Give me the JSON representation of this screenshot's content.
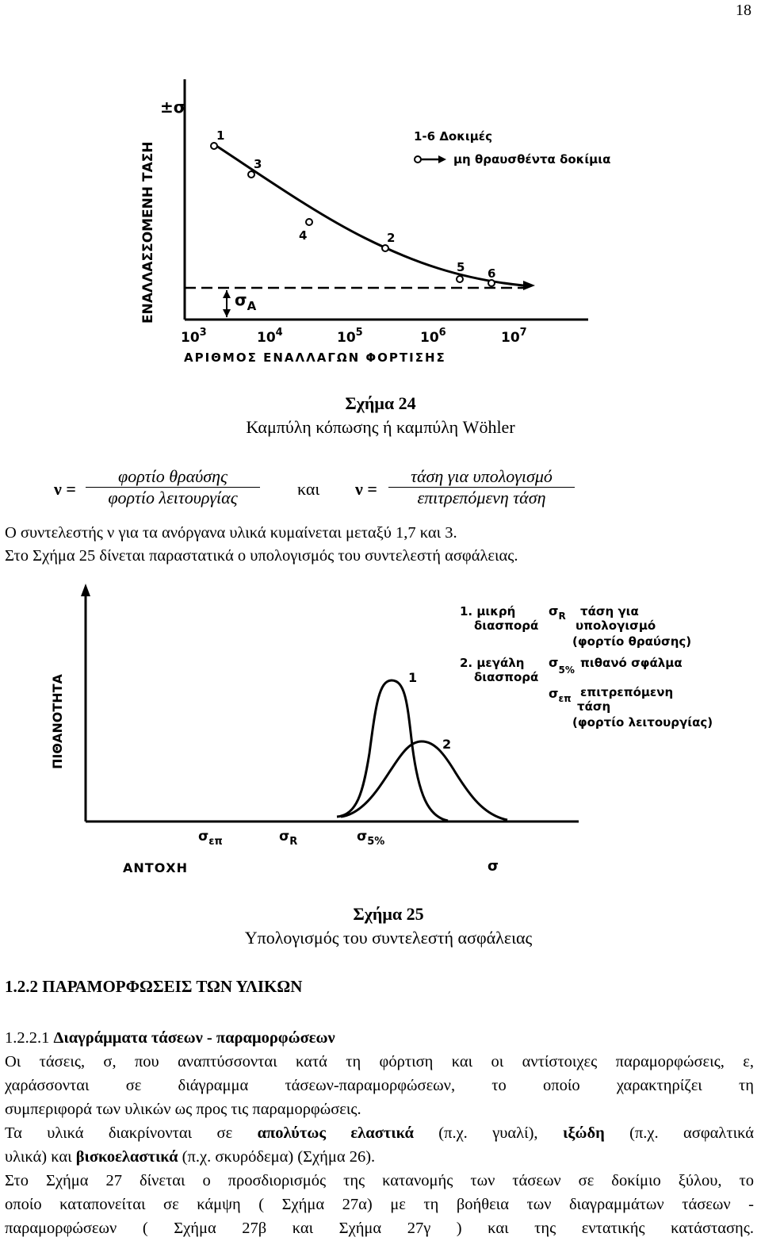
{
  "page_number": "18",
  "fig24": {
    "y_axis_label": "ΕΝΑΛΛΑΣΣΟΜΕΝΗ ΤΑΣΗ",
    "y_symbol": "±σ",
    "x_axis_label": "ΑΡΙΘΜΟΣ ΕΝΑΛΛΑΓΩΝ ΦΟΡΤΙΣΗΣ",
    "x_ticks": [
      "10",
      "10",
      "10",
      "10",
      "10"
    ],
    "x_tick_exponents": [
      "3",
      "4",
      "5",
      "6",
      "7"
    ],
    "sigma_a": "σ",
    "sigma_a_sub": "A",
    "legend_line1": "1-6  Δοκιμές",
    "legend_line2": "μη θραυσθέντα δοκίμια",
    "point_labels": [
      "1",
      "3",
      "4",
      "2",
      "5",
      "6"
    ],
    "caption_title": "Σχήμα 24",
    "caption_text": "Καμπύλη κόπωσης ή καμπύλη Wöhler"
  },
  "formula": {
    "nu1": "ν =",
    "num1": "φορτίο θραύσης",
    "den1": "φορτίο λειτουργίας",
    "and": "και",
    "nu2": "ν =",
    "num2": "τάση για υπολογισμό",
    "den2": "επιτρεπόμενη τάση"
  },
  "text1": "Ο συντελεστής ν για τα ανόργανα υλικά κυμαίνεται μεταξύ 1,7 και 3.",
  "text2": "Στο Σχήμα 25 δίνεται παραστατικά ο υπολογισμός του συντελεστή ασφάλειας.",
  "fig25": {
    "y_axis_label": "ΠΙΘΑΝΟΤΗΤΑ",
    "x_axis_label": "ΑΝΤΟΧΗ",
    "x_symbol": "σ",
    "x_marks": [
      "σεπ",
      "σR",
      "σ5%"
    ],
    "curve_labels": [
      "1",
      "2"
    ],
    "legend": [
      "1. μικρή",
      "διασπορά",
      "2. μεγάλη",
      "διασπορά",
      "σR",
      "τάση για",
      "υπολογισμό",
      "(φορτίο θραύσης)",
      "σ5%",
      "πιθανό σφάλμα",
      "σεπ",
      "επιτρεπόμενη",
      "τάση",
      "(φορτίο λειτουργίας)"
    ],
    "caption_title": "Σχήμα 25",
    "caption_text": "Υπολογισμός του συντελεστή ασφάλειας"
  },
  "section": {
    "heading": "1.2.2  ΠΑΡΑΜΟΡΦΩΣΕΙΣ ΤΩΝ ΥΛΙΚΩΝ",
    "sub_number": "1.2.2.1 ",
    "sub_title": "Διαγράμματα τάσεων - παραμορφώσεων",
    "p1": [
      "Οι τάσεις, σ, που αναπτύσσονται κατά τη φόρτιση και οι αντίστοιχες παραμορφώσεις, ε,",
      "χαράσσονται σε διάγραμμα τάσεων-παραμορφώσεων, το οποίο χαρακτηρίζει τη",
      "συμπεριφορά των υλικών ως προς τις παραμορφώσεις."
    ],
    "p2a": "Τα υλικά διακρίνονται σε ",
    "p2b": "απολύτως ελαστικά",
    "p2c": " (π.χ. γυαλί), ",
    "p2d": "ιξώδη",
    "p2e": " (π.χ. ασφαλτικά",
    "p2f": "υλικά) και ",
    "p2g": "βισκοελαστικά",
    "p2h": " (π.χ. σκυρόδεμα) (Σχήμα 26).",
    "p3": [
      "Στο Σχήμα 27 δίνεται ο προσδιορισμός της κατανομής των τάσεων σε δοκίμιο ξύλου, το",
      "οποίο καταπονείται σε κάμψη ( Σχήμα 27α) με τη βοήθεια των διαγραμμάτων τάσεων -",
      "παραμορφώσεων ( Σχήμα 27β και Σχήμα 27γ ) και της εντατικής κατάστασης."
    ]
  }
}
